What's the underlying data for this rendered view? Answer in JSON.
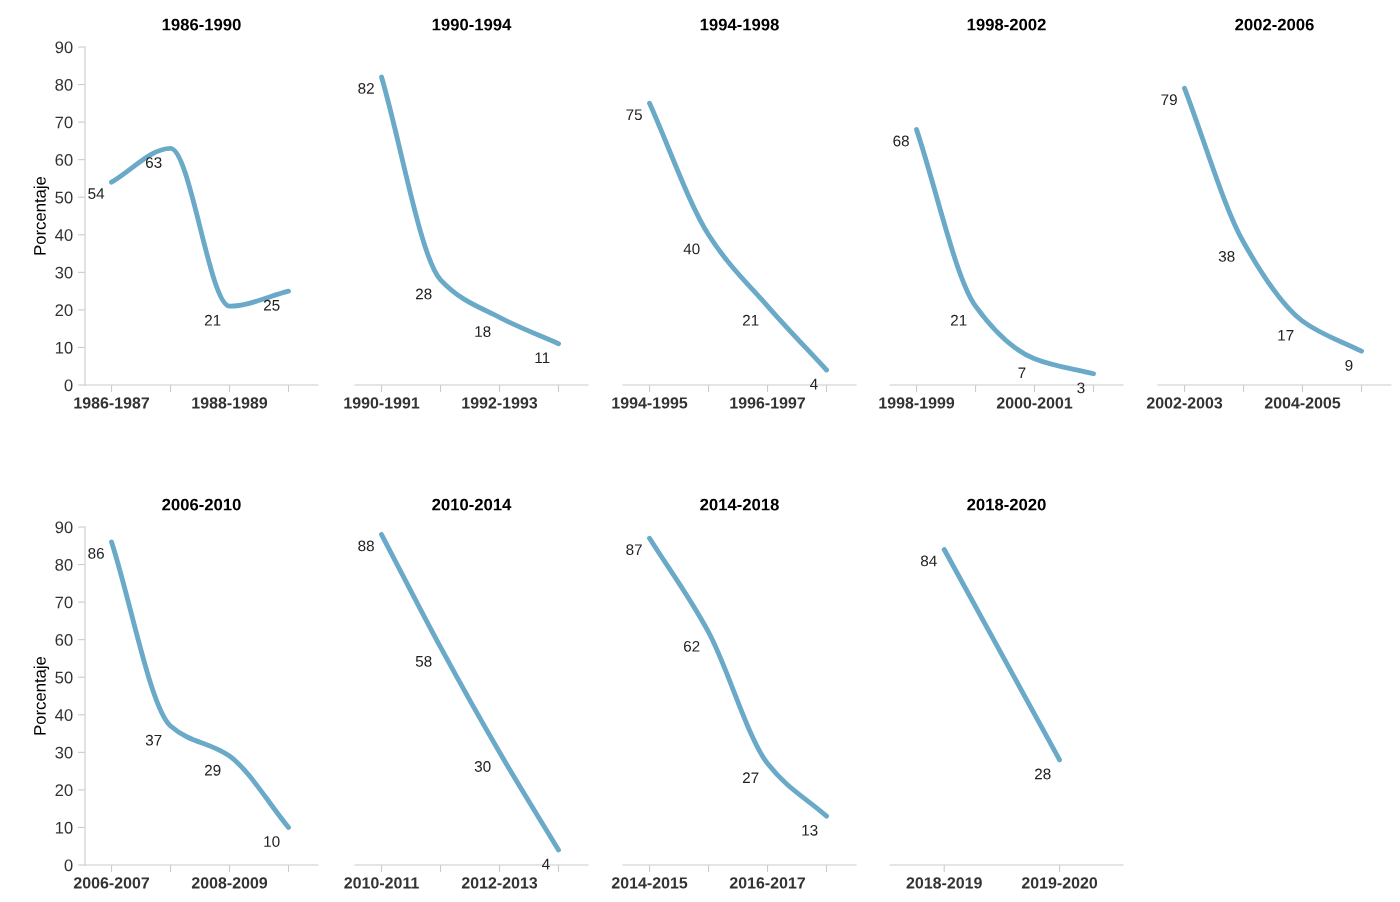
{
  "chart_data": [
    {
      "type": "line",
      "title": "1986-1990",
      "ylabel": "Porcentaje",
      "categories": [
        "1986-1987",
        null,
        "1988-1989",
        null
      ],
      "values": [
        54,
        63,
        21,
        25
      ],
      "color": "#6aaac8",
      "ylim": [
        0,
        90
      ],
      "yticks": [
        0,
        10,
        20,
        30,
        40,
        50,
        60,
        70,
        80,
        90
      ],
      "data_labels": true
    },
    {
      "type": "line",
      "title": "1990-1994",
      "categories": [
        "1990-1991",
        null,
        "1992-1993",
        null
      ],
      "values": [
        82,
        28,
        18,
        11
      ],
      "color": "#6aaac8",
      "ylim": [
        0,
        90
      ],
      "yticks": [
        0,
        10,
        20,
        30,
        40,
        50,
        60,
        70,
        80,
        90
      ],
      "data_labels": true,
      "tick_labels": "x"
    },
    {
      "type": "line",
      "title": "1994-1998",
      "categories": [
        "1994-1995",
        null,
        "1996-1997",
        null
      ],
      "values": [
        75,
        40,
        21,
        4
      ],
      "color": "#6aaac8",
      "ylim": [
        0,
        90
      ],
      "yticks": [
        0,
        10,
        20,
        30,
        40,
        50,
        60,
        70,
        80,
        90
      ],
      "data_labels": true,
      "tick_labels": "x"
    },
    {
      "type": "line",
      "title": "1998-2002",
      "categories": [
        "1998-1999",
        null,
        "2000-2001",
        null
      ],
      "values": [
        68,
        21,
        7,
        3
      ],
      "color": "#6aaac8",
      "ylim": [
        0,
        90
      ],
      "yticks": [
        0,
        10,
        20,
        30,
        40,
        50,
        60,
        70,
        80,
        90
      ],
      "data_labels": true,
      "tick_labels": "x"
    },
    {
      "type": "line",
      "title": "2002-2006",
      "categories": [
        "2002-2003",
        null,
        "2004-2005",
        null
      ],
      "values": [
        79,
        38,
        17,
        9
      ],
      "color": "#6aaac8",
      "ylim": [
        0,
        90
      ],
      "yticks": [
        0,
        10,
        20,
        30,
        40,
        50,
        60,
        70,
        80,
        90
      ],
      "data_labels": true,
      "tick_labels": "x"
    },
    {
      "type": "line",
      "title": "2006-2010",
      "ylabel": "Porcentaje",
      "categories": [
        "2006-2007",
        null,
        "2008-2009",
        null
      ],
      "values": [
        86,
        37,
        29,
        10
      ],
      "color": "#6aaac8",
      "ylim": [
        0,
        90
      ],
      "yticks": [
        0,
        10,
        20,
        30,
        40,
        50,
        60,
        70,
        80,
        90
      ],
      "data_labels": true
    },
    {
      "type": "line",
      "title": "2010-2014",
      "categories": [
        "2010-2011",
        null,
        "2012-2013",
        null
      ],
      "values": [
        88,
        58,
        30,
        4
      ],
      "color": "#6aaac8",
      "ylim": [
        0,
        90
      ],
      "yticks": [
        0,
        10,
        20,
        30,
        40,
        50,
        60,
        70,
        80,
        90
      ],
      "data_labels": true,
      "tick_labels": "x"
    },
    {
      "type": "line",
      "title": "2014-2018",
      "categories": [
        "2014-2015",
        null,
        "2016-2017",
        null
      ],
      "values": [
        87,
        62,
        27,
        13
      ],
      "color": "#6aaac8",
      "ylim": [
        0,
        90
      ],
      "yticks": [
        0,
        10,
        20,
        30,
        40,
        50,
        60,
        70,
        80,
        90
      ],
      "data_labels": true,
      "tick_labels": "x"
    },
    {
      "type": "line",
      "title": "2018-2020",
      "categories": [
        "2018-2019",
        "2019-2020"
      ],
      "values": [
        84,
        28
      ],
      "color": "#6aaac8",
      "ylim": [
        0,
        90
      ],
      "yticks": [
        0,
        10,
        20,
        30,
        40,
        50,
        60,
        70,
        80,
        90
      ],
      "data_labels": true,
      "tick_labels": "x"
    }
  ]
}
